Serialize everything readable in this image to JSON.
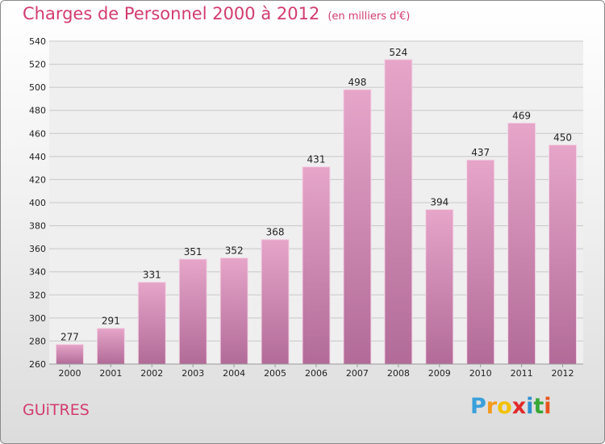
{
  "header": {
    "title": "Charges de Personnel 2000 à 2012",
    "subtitle": "(en milliers d'€)"
  },
  "footer": {
    "commune": "GUiTRES",
    "logo": {
      "letters": [
        "P",
        "r",
        "o",
        "x",
        "i",
        "t",
        "i"
      ],
      "colors": [
        "#3aa0dc",
        "#f39a1e",
        "#f2c200",
        "#e02a2a",
        "#2f8fd0",
        "#38a838",
        "#e8541a"
      ]
    }
  },
  "colors": {
    "bar_top": "#e6a5c9",
    "bar_bottom": "#b26b98",
    "accent": "#d23c6e"
  },
  "chart_data": {
    "type": "bar",
    "title": "Charges de Personnel 2000 à 2012",
    "subtitle": "(en milliers d'€)",
    "categories": [
      "2000",
      "2001",
      "2002",
      "2003",
      "2004",
      "2005",
      "2006",
      "2007",
      "2008",
      "2009",
      "2010",
      "2011",
      "2012"
    ],
    "values": [
      277,
      291,
      331,
      351,
      352,
      368,
      431,
      498,
      524,
      394,
      437,
      469,
      450
    ],
    "ylim": [
      260,
      540
    ],
    "yticks": [
      260,
      280,
      300,
      320,
      340,
      360,
      380,
      400,
      420,
      440,
      460,
      480,
      500,
      520,
      540
    ],
    "grid": true
  }
}
